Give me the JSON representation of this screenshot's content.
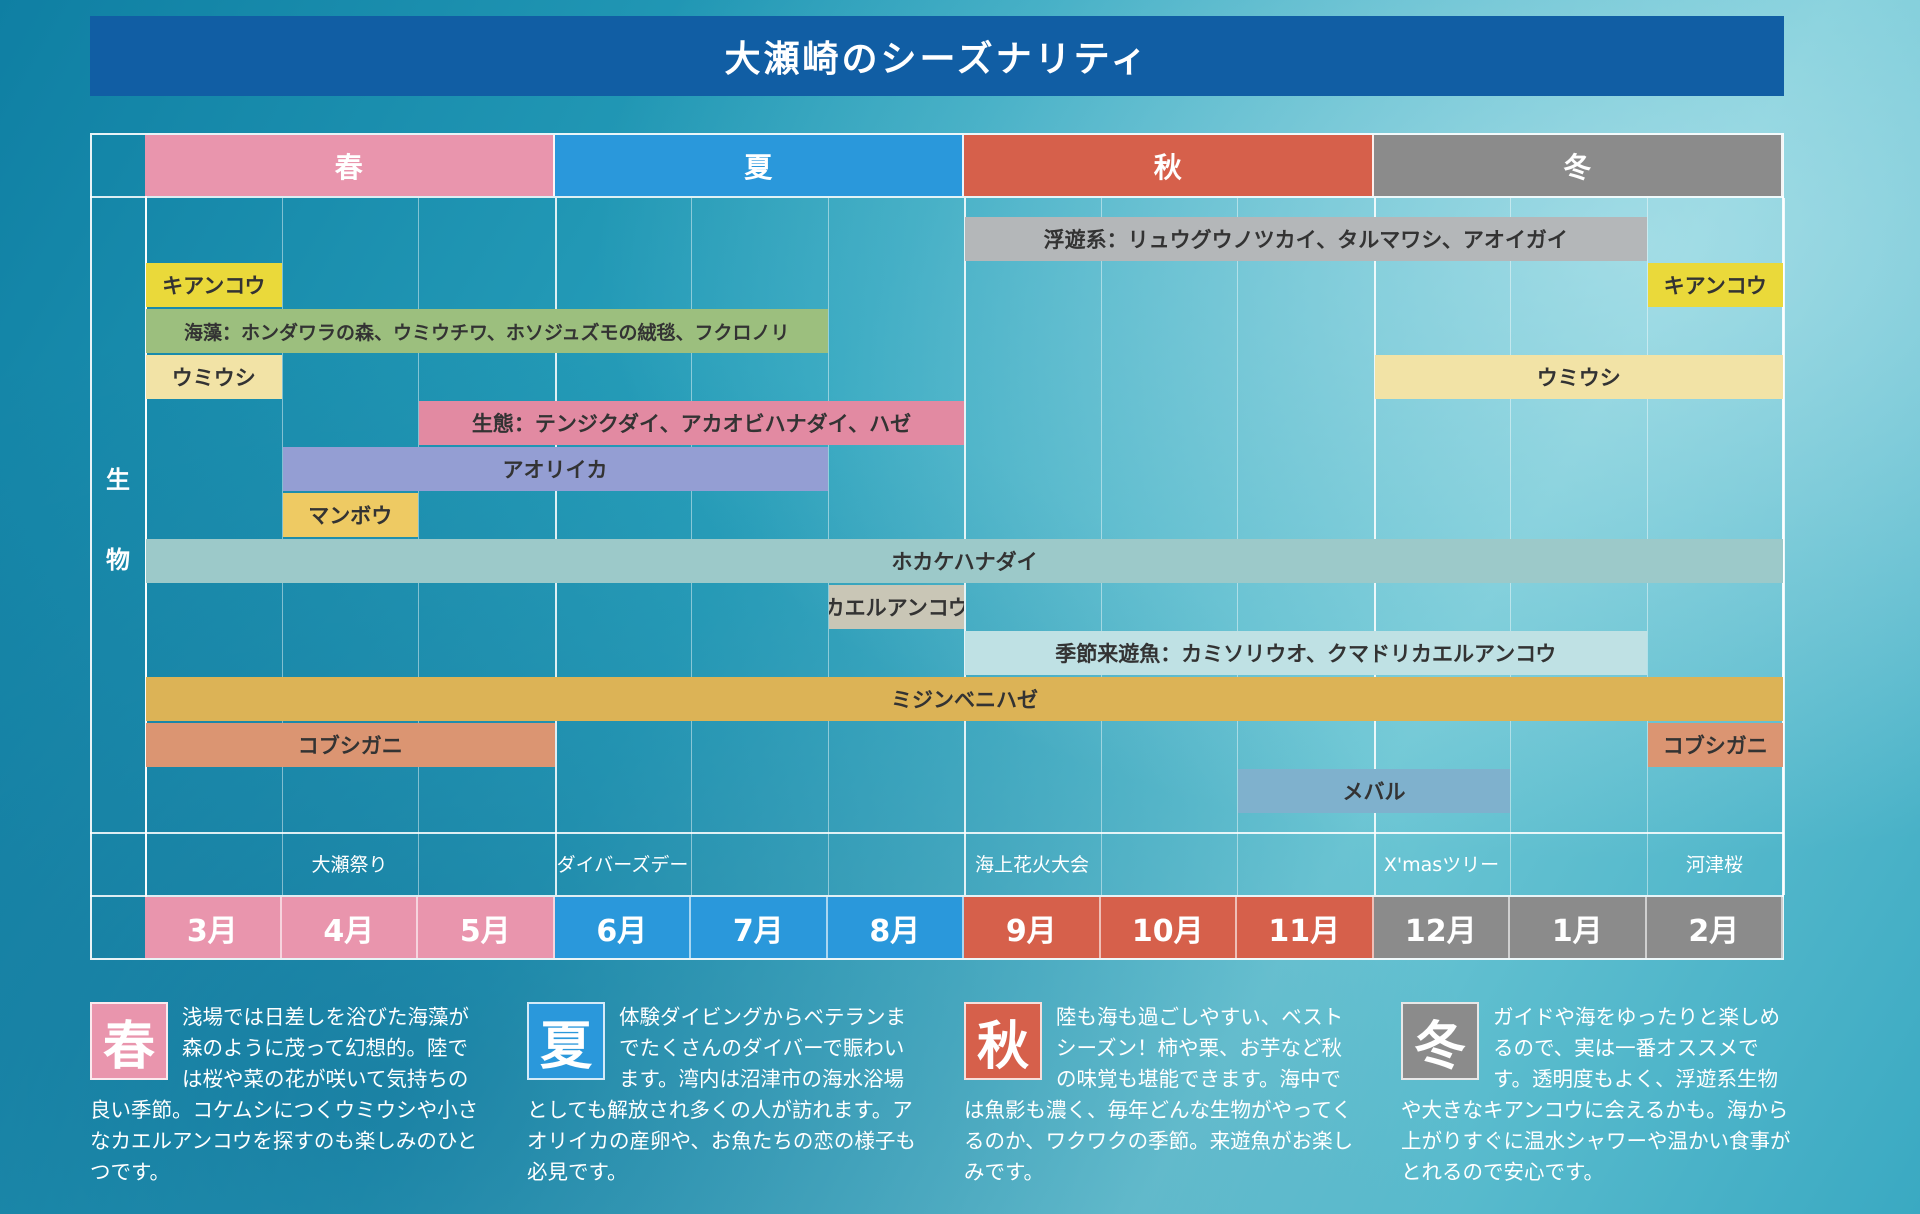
{
  "title": "大瀬崎のシーズナリティ",
  "colors": {
    "spring": "#e995ad",
    "summer": "#2a98db",
    "autumn": "#d6604b",
    "winter": "#8b8b8b",
    "title_bg": "#115ea4"
  },
  "seasons": [
    {
      "label": "春",
      "color": "#e995ad"
    },
    {
      "label": "夏",
      "color": "#2a98db"
    },
    {
      "label": "秋",
      "color": "#d6604b"
    },
    {
      "label": "冬",
      "color": "#8b8b8b"
    }
  ],
  "months": [
    {
      "label": "3月",
      "color": "#e995ad"
    },
    {
      "label": "4月",
      "color": "#e995ad"
    },
    {
      "label": "5月",
      "color": "#e995ad"
    },
    {
      "label": "6月",
      "color": "#2a98db"
    },
    {
      "label": "7月",
      "color": "#2a98db"
    },
    {
      "label": "8月",
      "color": "#2a98db"
    },
    {
      "label": "9月",
      "color": "#d6604b"
    },
    {
      "label": "10月",
      "color": "#d6604b"
    },
    {
      "label": "11月",
      "color": "#d6604b"
    },
    {
      "label": "12月",
      "color": "#8b8b8b"
    },
    {
      "label": "1月",
      "color": "#8b8b8b"
    },
    {
      "label": "2月",
      "color": "#8b8b8b"
    }
  ],
  "row_label": [
    "生",
    "物"
  ],
  "creatures": [
    {
      "label": "浮遊系：リュウグウノツカイ、タルマワシ、アオイガイ",
      "start_month": "9月",
      "end_month": "1月",
      "color": "#b4b7b9"
    },
    {
      "label": "キアンコウ",
      "start_month": "3月",
      "end_month": "3月",
      "color": "#ead93a"
    },
    {
      "label": "キアンコウ",
      "start_month": "2月",
      "end_month": "2月",
      "color": "#ead93a"
    },
    {
      "label": "海藻：ホンダワラの森、ウミウチワ、ホソジュズモの絨毯、フクロノリ",
      "start_month": "3月",
      "end_month": "7月",
      "color": "#9cbf7e"
    },
    {
      "label": "ウミウシ",
      "start_month": "3月",
      "end_month": "3月",
      "color": "#f2e3a6"
    },
    {
      "label": "ウミウシ",
      "start_month": "12月",
      "end_month": "2月",
      "color": "#f2e3a6"
    },
    {
      "label": "生態：テンジクダイ、アカオビハナダイ、ハゼ",
      "start_month": "5月",
      "end_month": "8月",
      "color": "#e28aa2"
    },
    {
      "label": "アオリイカ",
      "start_month": "4月",
      "end_month": "7月",
      "color": "#949ed3"
    },
    {
      "label": "マンボウ",
      "start_month": "4月",
      "end_month": "4月",
      "color": "#eeca63"
    },
    {
      "label": "ホカケハナダイ",
      "start_month": "3月",
      "end_month": "2月",
      "color": "#9cc9c9"
    },
    {
      "label": "カエルアンコウ",
      "start_month": "8月",
      "end_month": "8月",
      "color": "#c9c6b6"
    },
    {
      "label": "季節来遊魚：カミソリウオ、クマドリカエルアンコウ",
      "start_month": "9月",
      "end_month": "1月",
      "color": "#bfe1e4"
    },
    {
      "label": "ミジンベニハゼ",
      "start_month": "3月",
      "end_month": "2月",
      "color": "#dcb356"
    },
    {
      "label": "コブシガニ",
      "start_month": "3月",
      "end_month": "5月",
      "color": "#db9572"
    },
    {
      "label": "コブシガニ",
      "start_month": "2月",
      "end_month": "2月",
      "color": "#db9572"
    },
    {
      "label": "メバル",
      "start_month": "11月",
      "end_month": "12月",
      "color": "#7fb1cd"
    }
  ],
  "events": [
    {
      "label": "大瀬祭り",
      "month": "4月"
    },
    {
      "label": "ダイバーズデー",
      "month": "6月"
    },
    {
      "label": "海上花火大会",
      "month": "9月"
    },
    {
      "label": "X'masツリー",
      "month": "12月"
    },
    {
      "label": "河津桜",
      "month": "2月"
    }
  ],
  "descriptions": [
    {
      "badge": "春",
      "color": "#e995ad",
      "text": "浅場では日差しを浴びた海藻が森のように茂って幻想的。陸では桜や菜の花が咲いて気持ちの良い季節。コケムシにつくウミウシや小さなカエルアンコウを探すのも楽しみのひとつです。"
    },
    {
      "badge": "夏",
      "color": "#2a98db",
      "text": "体験ダイビングからベテランまでたくさんのダイバーで賑わいます。湾内は沼津市の海水浴場としても解放され多くの人が訪れます。アオリイカの産卵や、お魚たちの恋の様子も必見です。"
    },
    {
      "badge": "秋",
      "color": "#d6604b",
      "text": "陸も海も過ごしやすい、ベストシーズン！柿や栗、お芋など秋の味覚も堪能できます。海中では魚影も濃く、毎年どんな生物がやってくるのか、ワクワクの季節。来遊魚がお楽しみです。"
    },
    {
      "badge": "冬",
      "color": "#8b8b8b",
      "text": "ガイドや海をゆったりと楽しめるので、実は一番オススメです。透明度もよく、浮遊系生物や大きなキアンコウに会えるかも。海から上がりすぐに温水シャワーや温かい食事がとれるので安心です。"
    }
  ]
}
